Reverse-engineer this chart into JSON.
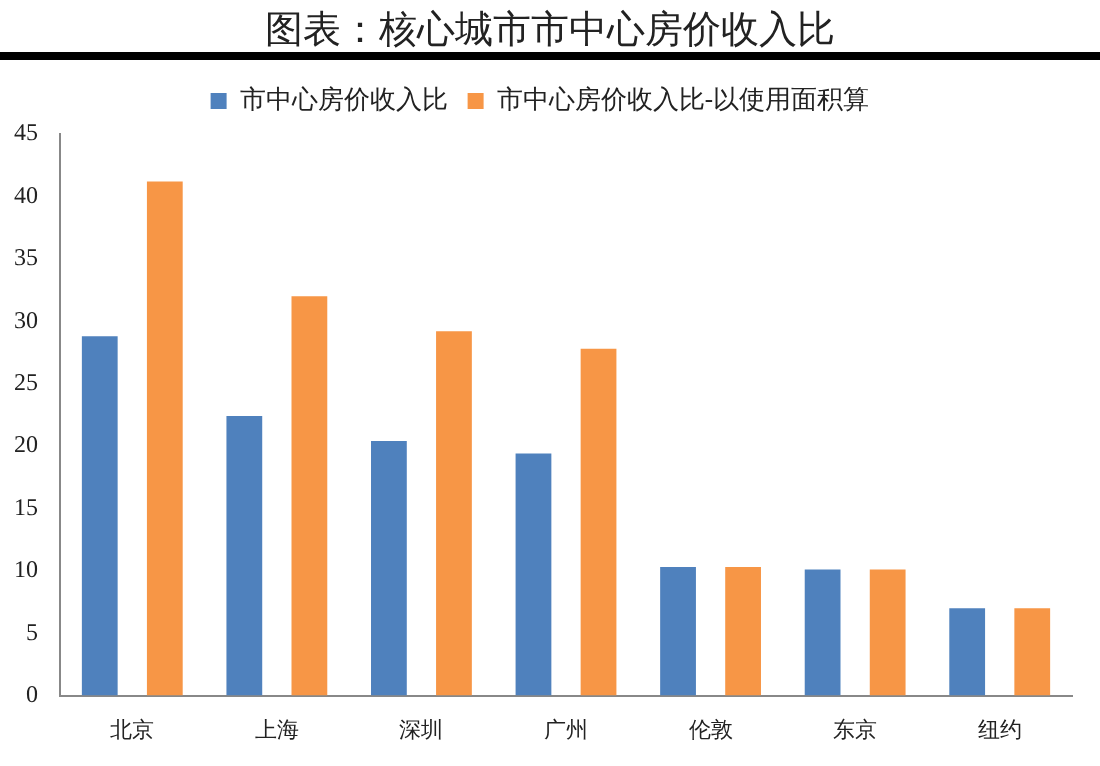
{
  "chart_data": {
    "type": "bar",
    "title": "图表：核心城市市中心房价收入比",
    "categories": [
      "北京",
      "上海",
      "深圳",
      "广州",
      "伦敦",
      "东京",
      "纽约"
    ],
    "series": [
      {
        "name": "市中心房价收入比",
        "color": "#4f81bd",
        "values": [
          28.8,
          22.4,
          20.4,
          19.4,
          10.3,
          10.1,
          7.0
        ]
      },
      {
        "name": "市中心房价收入比-以使用面积算",
        "color": "#f79646",
        "values": [
          41.2,
          32.0,
          29.2,
          27.8,
          10.3,
          10.1,
          7.0
        ]
      }
    ],
    "ylim": [
      0,
      45
    ],
    "yticks": [
      0,
      5,
      10,
      15,
      20,
      25,
      30,
      35,
      40,
      45
    ],
    "grid": false,
    "legend": "top"
  }
}
